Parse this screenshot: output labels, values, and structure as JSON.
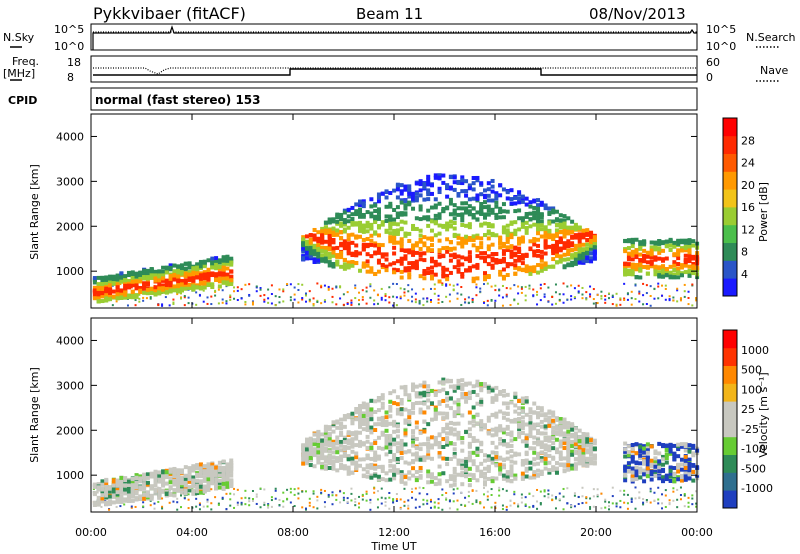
{
  "header": {
    "station": "Pykkvibaer (fitACF)",
    "beam": "Beam 11",
    "date": "08/Nov/2013"
  },
  "nsky": {
    "left_label": "N.Sky",
    "tick_top": "10^5",
    "tick_bottom": "10^0",
    "right_label": "N.Search",
    "right_tick_top": "10^5",
    "right_tick_bottom": "10^0"
  },
  "freq": {
    "left_label_1": "Freq.",
    "left_label_2": "[MHz]",
    "tick_top": "18",
    "tick_bottom": "8",
    "right_label": "Nave",
    "right_tick_top": "60",
    "right_tick_bottom": "0"
  },
  "cpid": {
    "label": "CPID",
    "value": "normal (fast stereo) 153"
  },
  "chart_data": [
    {
      "type": "heatmap",
      "name": "power",
      "ylabel": "Slant Range [km]",
      "ylim": [
        180,
        4500
      ],
      "yticks": [
        "1000",
        "2000",
        "3000",
        "4000"
      ],
      "xlim": [
        "00:00",
        "24:00"
      ],
      "colorbar": {
        "label": "Power [dB]",
        "ticks": [
          "28",
          "24",
          "20",
          "16",
          "12",
          "8",
          "4"
        ],
        "colors": [
          "#1a1aff",
          "#2a55c8",
          "#2e8b57",
          "#4bbf4b",
          "#9acd32",
          "#f2c419",
          "#ff9900",
          "#ff5a00",
          "#ff2a00",
          "#ff0000"
        ]
      },
      "echo_bands": [
        {
          "t_start": "00:00",
          "t_end": "05:30",
          "range_start_km": 350,
          "range_end_km": 1300
        },
        {
          "t_start": "08:30",
          "t_end": "20:00",
          "range_start_km": 800,
          "range_end_km": 3200
        },
        {
          "t_start": "21:00",
          "t_end": "24:00",
          "range_start_km": 900,
          "range_end_km": 1800
        }
      ]
    },
    {
      "type": "heatmap",
      "name": "velocity",
      "ylabel": "Slant Range [km]",
      "ylim": [
        180,
        4500
      ],
      "yticks": [
        "1000",
        "2000",
        "3000",
        "4000"
      ],
      "xlim": [
        "00:00",
        "24:00"
      ],
      "colorbar": {
        "label": "Velocity [m s⁻¹]",
        "ticks": [
          "1000",
          "500",
          "100",
          "25",
          "-25",
          "-100",
          "-500",
          "-1000"
        ],
        "colors": [
          "#1f3fbf",
          "#2f6f8f",
          "#2e8b57",
          "#66cc33",
          "#c8c8c0",
          "#c8c8c0",
          "#f2b519",
          "#ff8800",
          "#ff3300",
          "#ff0000"
        ]
      }
    }
  ],
  "xaxis": {
    "ticks": [
      "00:00",
      "04:00",
      "08:00",
      "12:00",
      "16:00",
      "20:00",
      "00:00"
    ],
    "label": "Time UT"
  },
  "colors": {
    "power_scatter": [
      "#1a1aff",
      "#2a55c8",
      "#2e8b57",
      "#9acd32",
      "#ff9900",
      "#ff2a00"
    ],
    "velocity_scatter": [
      "#c8c8c0",
      "#2e8b57",
      "#66cc33",
      "#ff8800",
      "#1f3fbf"
    ]
  }
}
